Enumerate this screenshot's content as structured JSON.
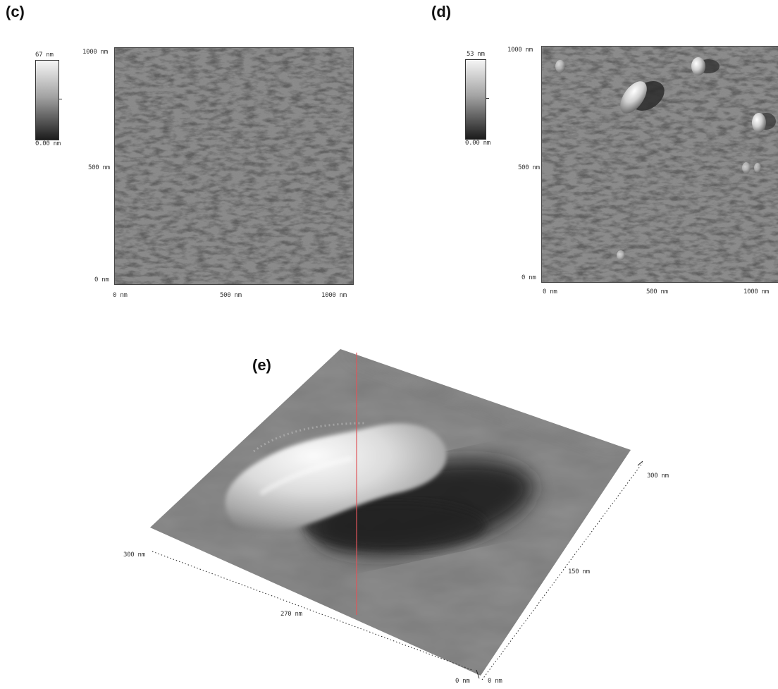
{
  "panels": {
    "c": {
      "label": "(c)",
      "scale": {
        "max": "67 nm",
        "min": "0.00 nm"
      },
      "y_ticks": [
        "1000 nm",
        "500 nm",
        "0 nm"
      ],
      "x_ticks": [
        "0 nm",
        "500 nm",
        "1000 nm"
      ]
    },
    "d": {
      "label": "(d)",
      "scale": {
        "max": "53 nm",
        "min": "0.00 nm"
      },
      "y_ticks": [
        "1000 nm",
        "500 nm",
        "0 nm"
      ],
      "x_ticks": [
        "0 nm",
        "500 nm",
        "1000 nm"
      ]
    },
    "e": {
      "label": "(e)",
      "axis_labels": {
        "x_far": "300 nm",
        "x_mid": "270 nm",
        "y_mid": "150 nm",
        "y_far": "300 nm",
        "origin": "0 nm",
        "z": "0 nm"
      }
    }
  },
  "colors": {
    "surface_gray": "#7c7c7c",
    "scan_line": "#e0555a"
  }
}
